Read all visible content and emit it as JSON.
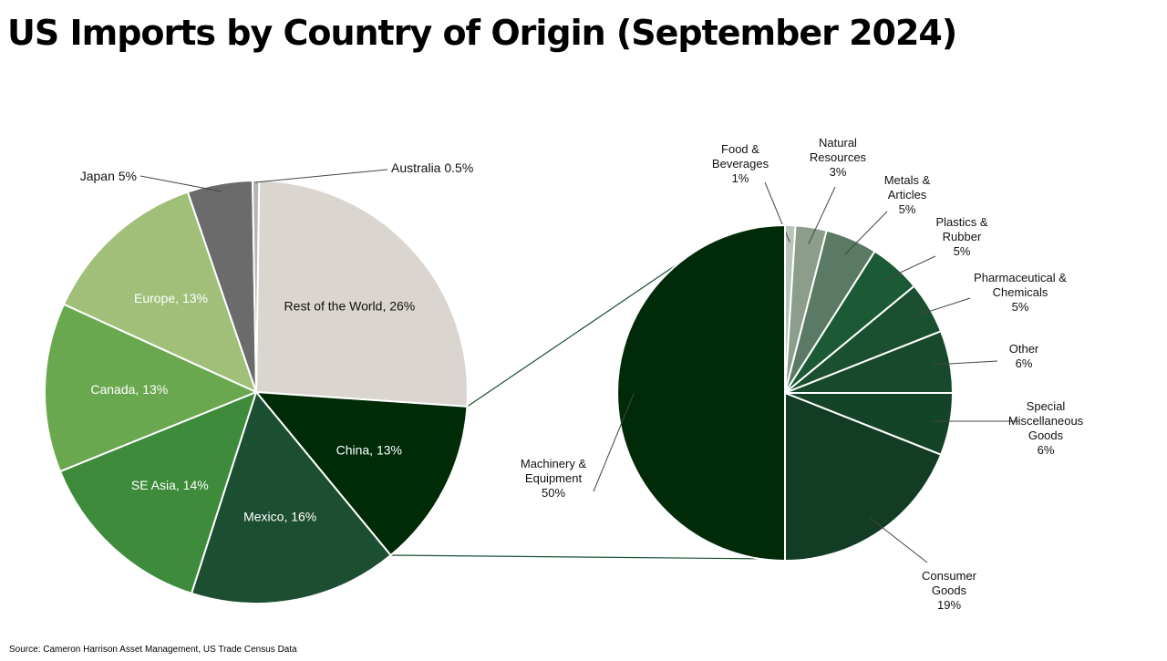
{
  "title": "US Imports by Country of Origin (September 2024)",
  "source": "Source: Cameron Harrison Asset Management, US Trade Census Data",
  "chart_data": [
    {
      "type": "pie",
      "slices": [
        {
          "label": "Rest of the World, 26%",
          "value": 26,
          "color": "#dbd5cf",
          "text_color": "#111111",
          "label_style": "inside"
        },
        {
          "label": "China, 13%",
          "value": 13,
          "color": "#002b07",
          "text_color": "#ffffff",
          "label_style": "inside",
          "exploded_source": true
        },
        {
          "label": "Mexico, 16%",
          "value": 16,
          "color": "#1c4f31",
          "text_color": "#ffffff",
          "label_style": "inside"
        },
        {
          "label": "SE Asia, 14%",
          "value": 14,
          "color": "#3d8b3b",
          "text_color": "#ffffff",
          "label_style": "inside"
        },
        {
          "label": "Canada, 13%",
          "value": 13,
          "color": "#6aa84f",
          "text_color": "#ffffff",
          "label_style": "inside"
        },
        {
          "label": "Europe, 13%",
          "value": 13,
          "color": "#a0c07a",
          "text_color": "#ffffff",
          "label_style": "inside"
        },
        {
          "label": "Japan 5%",
          "value": 5,
          "color": "#6b6b6b",
          "text_color": "#111111",
          "label_style": "callout"
        },
        {
          "label": "Australia 0.5%",
          "value": 0.5,
          "color": "#b5b5b5",
          "text_color": "#111111",
          "label_style": "callout"
        }
      ]
    },
    {
      "type": "pie",
      "parent_slice": "China, 13%",
      "slices": [
        {
          "label": [
            "Food &",
            "Beverages",
            "1%"
          ],
          "value": 1,
          "color": "#b9c5b8"
        },
        {
          "label": [
            "Natural",
            "Resources",
            "3%"
          ],
          "value": 3,
          "color": "#8c9d8c"
        },
        {
          "label": [
            "Metals &",
            "Articles",
            "5%"
          ],
          "value": 5,
          "color": "#5b7a66"
        },
        {
          "label": [
            "Plastics &",
            "Rubber",
            "5%"
          ],
          "value": 5,
          "color": "#1c5a35"
        },
        {
          "label": [
            "Pharmaceutical &",
            "Chemicals",
            "5%"
          ],
          "value": 5,
          "color": "#1a5030"
        },
        {
          "label": [
            "Other",
            "6%"
          ],
          "value": 6,
          "color": "#174a2c"
        },
        {
          "label": [
            "Special",
            "Miscellaneous",
            "Goods",
            "6%"
          ],
          "value": 6,
          "color": "#144428"
        },
        {
          "label": [
            "Consumer",
            "Goods",
            "19%"
          ],
          "value": 19,
          "color": "#123c23"
        },
        {
          "label": [
            "Machinery &",
            "Equipment",
            "50%"
          ],
          "value": 50,
          "color": "#002a08"
        }
      ]
    }
  ]
}
